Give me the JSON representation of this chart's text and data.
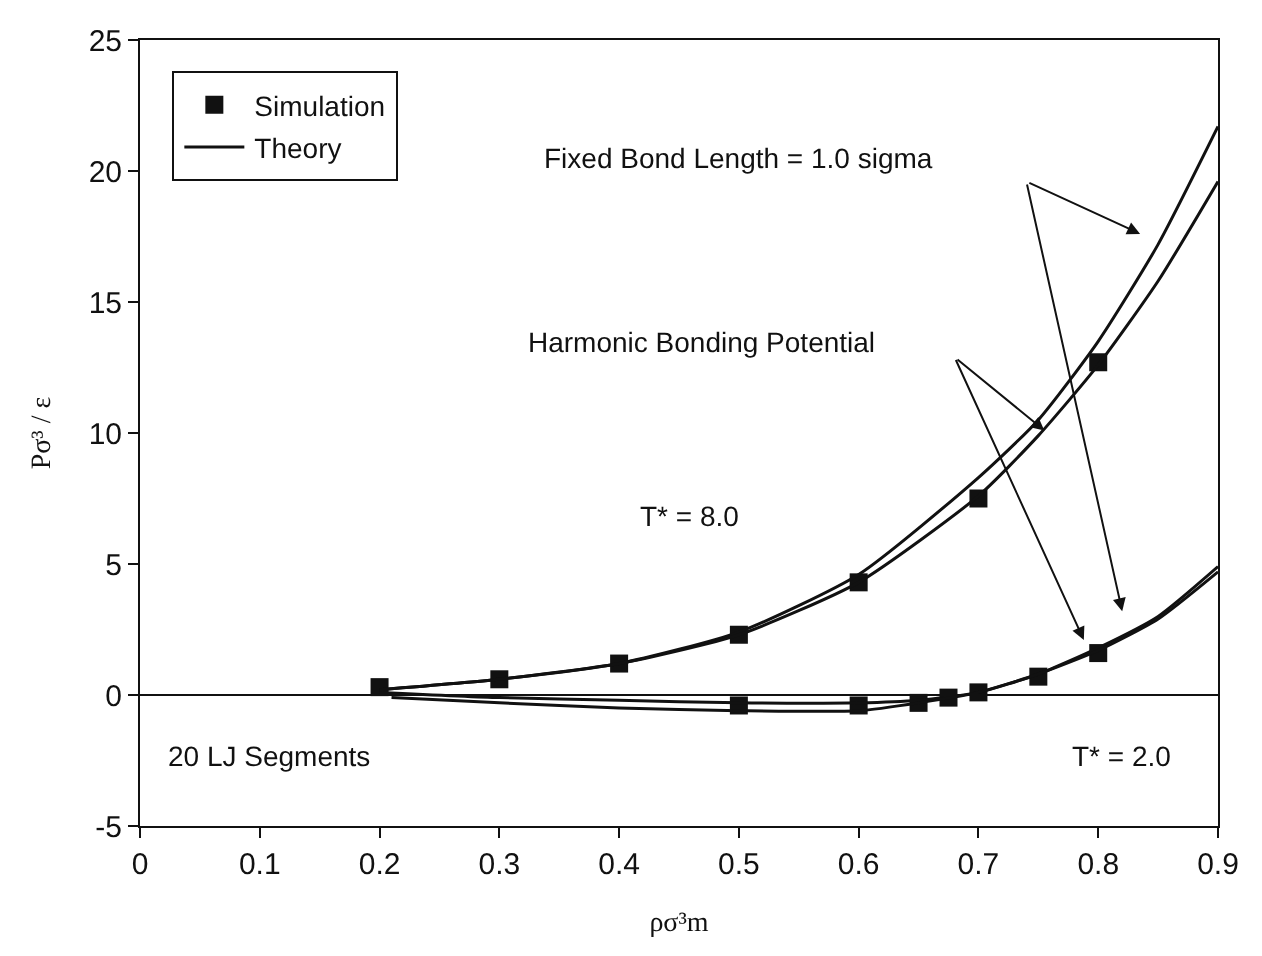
{
  "chart_data": {
    "type": "line",
    "xlabel": "ρσ³m",
    "ylabel": "Pσ³ / ε",
    "xlim": [
      0,
      0.9
    ],
    "xticks": [
      0,
      0.1,
      0.2,
      0.3,
      0.4,
      0.5,
      0.6,
      0.7,
      0.8,
      0.9
    ],
    "ylim": [
      -5,
      25
    ],
    "yticks": [
      -5,
      0,
      5,
      10,
      15,
      20,
      25
    ],
    "legend": "top left",
    "series": [
      {
        "name": "Simulation",
        "type": "scatter",
        "marker": "square",
        "color": "#111111",
        "x": [
          0.2,
          0.3,
          0.4,
          0.5,
          0.6,
          0.7,
          0.8
        ],
        "values": [
          0.3,
          0.6,
          1.2,
          2.3,
          4.3,
          7.5,
          12.7
        ]
      },
      {
        "type": "scatter",
        "marker": "square",
        "color": "#111111",
        "x": [
          0.5,
          0.6,
          0.65,
          0.675,
          0.7,
          0.75,
          0.8
        ],
        "values": [
          -0.4,
          -0.4,
          -0.3,
          -0.1,
          0.1,
          0.7,
          1.6
        ]
      },
      {
        "name": "Theory",
        "marker": "none",
        "line_style": "solid",
        "color": "#111111",
        "x": [
          0.2,
          0.3,
          0.4,
          0.5,
          0.6,
          0.7,
          0.75,
          0.8,
          0.85,
          0.9
        ],
        "values": [
          0.2,
          0.6,
          1.2,
          2.4,
          4.6,
          8.3,
          10.5,
          13.5,
          17.2,
          21.7
        ]
      },
      {
        "marker": "none",
        "line_style": "solid",
        "color": "#111111",
        "x": [
          0.2,
          0.3,
          0.4,
          0.5,
          0.6,
          0.7,
          0.75,
          0.8,
          0.85,
          0.9
        ],
        "values": [
          0.2,
          0.6,
          1.2,
          2.3,
          4.3,
          7.6,
          9.9,
          12.6,
          15.8,
          19.6
        ]
      },
      {
        "marker": "none",
        "line_style": "solid",
        "color": "#111111",
        "x": [
          0.2,
          0.3,
          0.4,
          0.5,
          0.6,
          0.65,
          0.7,
          0.75,
          0.8,
          0.85,
          0.9
        ],
        "values": [
          0.1,
          -0.1,
          -0.2,
          -0.3,
          -0.3,
          -0.2,
          0.1,
          0.8,
          1.8,
          3.0,
          4.9
        ]
      },
      {
        "marker": "none",
        "line_style": "solid",
        "color": "#111111",
        "x": [
          0.21,
          0.3,
          0.4,
          0.5,
          0.6,
          0.65,
          0.7,
          0.75,
          0.8,
          0.85,
          0.9
        ],
        "values": [
          -0.1,
          -0.3,
          -0.5,
          -0.6,
          -0.6,
          -0.3,
          0.1,
          0.8,
          1.7,
          2.9,
          4.7
        ]
      }
    ],
    "ref_lines": [
      {
        "axis": "y",
        "value": 0,
        "color": "#111111"
      }
    ],
    "annotations": [
      "Fixed Bond Length = 1.0 sigma",
      "Harmonic Bonding Potential",
      "T* = 8.0",
      "T* = 2.0",
      "20 LJ Segments"
    ]
  }
}
